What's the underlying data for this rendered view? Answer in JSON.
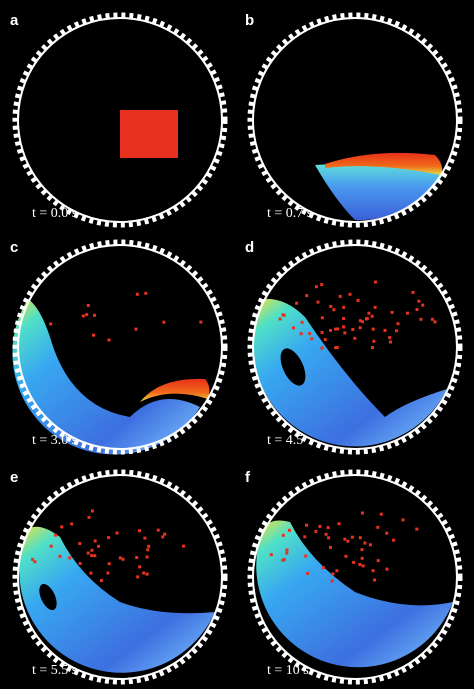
{
  "panels": [
    {
      "label": "a",
      "time": "t = 0.0 s"
    },
    {
      "label": "b",
      "time": "t = 0.7 s"
    },
    {
      "label": "c",
      "time": "t = 3.0 s"
    },
    {
      "label": "d",
      "time": "t = 4.5"
    },
    {
      "label": "e",
      "time": "t = 5.5 s"
    },
    {
      "label": "f",
      "time": "t = 10 s"
    }
  ]
}
